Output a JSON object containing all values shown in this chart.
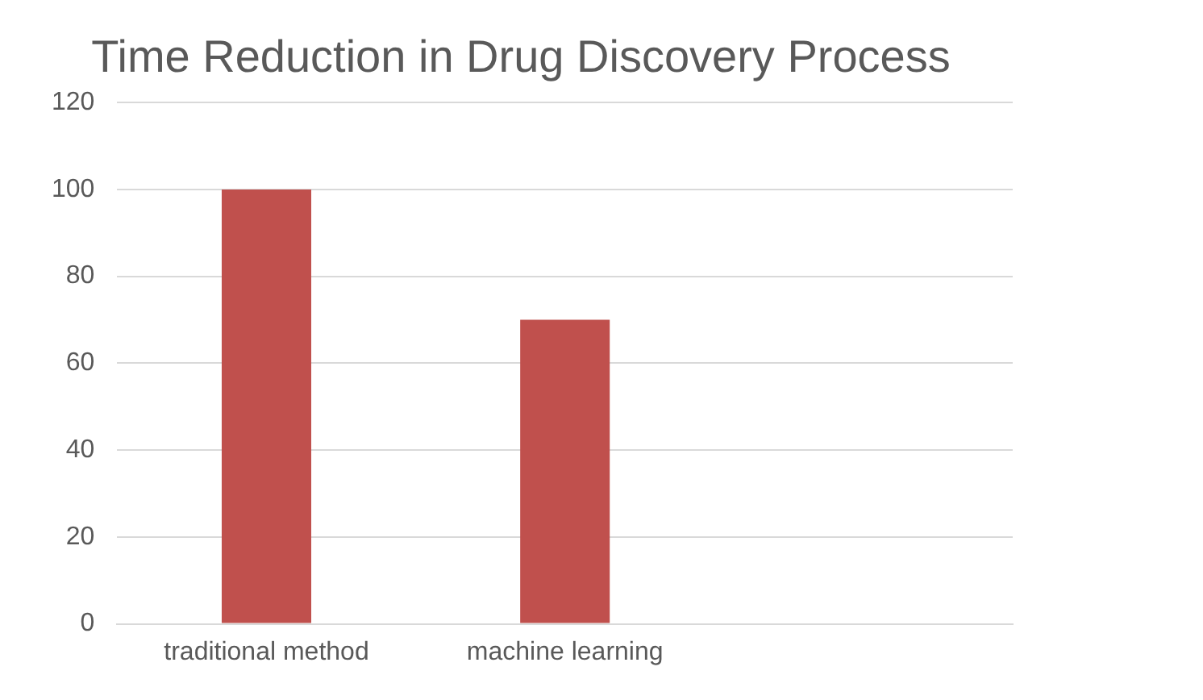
{
  "chart_data": {
    "type": "bar",
    "title": "Time Reduction in Drug Discovery Process",
    "categories": [
      "traditional method",
      "machine learning",
      null
    ],
    "values": [
      100,
      70,
      null
    ],
    "color": "#c0504d",
    "ylim": [
      0,
      120
    ],
    "yticks": [
      0,
      20,
      40,
      60,
      80,
      100,
      120
    ],
    "grid": "y",
    "legend": false
  }
}
